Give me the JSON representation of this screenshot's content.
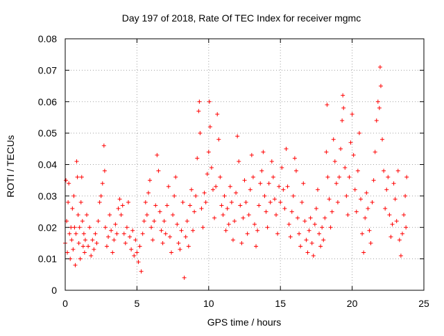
{
  "colors": {
    "series": "#ff0000",
    "axis": "#000000",
    "grid": "#a0a0a0",
    "background": "#ffffff"
  },
  "chart_data": {
    "type": "scatter",
    "title": "Day 197 of 2018, Rate Of TEC Index for receiver mgmc",
    "xlabel": "GPS time / hours",
    "ylabel": "ROTI / TECUs",
    "xlim": [
      0,
      25
    ],
    "ylim": [
      0,
      0.08
    ],
    "xticks": [
      0,
      5,
      10,
      15,
      20,
      25
    ],
    "xtick_labels": [
      "0",
      "5",
      "10",
      "15",
      "20",
      "25"
    ],
    "yticks": [
      0,
      0.01,
      0.02,
      0.03,
      0.04,
      0.05,
      0.06,
      0.07,
      0.08
    ],
    "ytick_labels": [
      "0",
      "0.01",
      "0.02",
      "0.03",
      "0.04",
      "0.05",
      "0.06",
      "0.07",
      "0.08"
    ],
    "grid": true,
    "marker": "+",
    "series": [
      {
        "name": "ROTI",
        "points": [
          [
            0.0,
            0.015
          ],
          [
            0.05,
            0.035
          ],
          [
            0.1,
            0.022
          ],
          [
            0.15,
            0.012
          ],
          [
            0.2,
            0.028
          ],
          [
            0.25,
            0.034
          ],
          [
            0.3,
            0.018
          ],
          [
            0.35,
            0.01
          ],
          [
            0.4,
            0.02
          ],
          [
            0.45,
            0.016
          ],
          [
            0.5,
            0.026
          ],
          [
            0.55,
            0.013
          ],
          [
            0.6,
            0.03
          ],
          [
            0.65,
            0.02
          ],
          [
            0.7,
            0.008
          ],
          [
            0.75,
            0.018
          ],
          [
            0.8,
            0.041
          ],
          [
            0.85,
            0.036
          ],
          [
            0.9,
            0.024
          ],
          [
            0.95,
            0.015
          ],
          [
            1.0,
            0.02
          ],
          [
            1.05,
            0.01
          ],
          [
            1.1,
            0.028
          ],
          [
            1.15,
            0.036
          ],
          [
            1.2,
            0.022
          ],
          [
            1.25,
            0.014
          ],
          [
            1.3,
            0.018
          ],
          [
            1.35,
            0.012
          ],
          [
            1.4,
            0.016
          ],
          [
            1.5,
            0.024
          ],
          [
            1.6,
            0.014
          ],
          [
            1.7,
            0.02
          ],
          [
            1.8,
            0.011
          ],
          [
            1.9,
            0.016
          ],
          [
            2.0,
            0.013
          ],
          [
            2.1,
            0.018
          ],
          [
            2.2,
            0.015
          ],
          [
            2.3,
            0.022
          ],
          [
            2.4,
            0.028
          ],
          [
            2.5,
            0.03
          ],
          [
            2.6,
            0.034
          ],
          [
            2.7,
            0.046
          ],
          [
            2.75,
            0.038
          ],
          [
            2.8,
            0.02
          ],
          [
            2.9,
            0.014
          ],
          [
            3.0,
            0.017
          ],
          [
            3.1,
            0.024
          ],
          [
            3.2,
            0.019
          ],
          [
            3.3,
            0.012
          ],
          [
            3.4,
            0.016
          ],
          [
            3.5,
            0.021
          ],
          [
            3.6,
            0.018
          ],
          [
            3.7,
            0.026
          ],
          [
            3.8,
            0.029
          ],
          [
            3.9,
            0.024
          ],
          [
            4.0,
            0.027
          ],
          [
            4.1,
            0.018
          ],
          [
            4.2,
            0.015
          ],
          [
            4.3,
            0.02
          ],
          [
            4.4,
            0.028
          ],
          [
            4.5,
            0.017
          ],
          [
            4.6,
            0.013
          ],
          [
            4.7,
            0.019
          ],
          [
            4.8,
            0.011
          ],
          [
            4.9,
            0.016
          ],
          [
            5.0,
            0.012
          ],
          [
            5.1,
            0.009
          ],
          [
            5.2,
            0.014
          ],
          [
            5.3,
            0.006
          ],
          [
            5.4,
            0.018
          ],
          [
            5.5,
            0.022
          ],
          [
            5.6,
            0.028
          ],
          [
            5.7,
            0.024
          ],
          [
            5.8,
            0.031
          ],
          [
            5.9,
            0.035
          ],
          [
            6.0,
            0.02
          ],
          [
            6.1,
            0.016
          ],
          [
            6.2,
            0.022
          ],
          [
            6.3,
            0.027
          ],
          [
            6.4,
            0.043
          ],
          [
            6.5,
            0.038
          ],
          [
            6.6,
            0.025
          ],
          [
            6.7,
            0.019
          ],
          [
            6.8,
            0.015
          ],
          [
            6.9,
            0.022
          ],
          [
            7.0,
            0.018
          ],
          [
            7.1,
            0.027
          ],
          [
            7.2,
            0.033
          ],
          [
            7.3,
            0.017
          ],
          [
            7.4,
            0.012
          ],
          [
            7.5,
            0.024
          ],
          [
            7.6,
            0.03
          ],
          [
            7.7,
            0.036
          ],
          [
            7.8,
            0.021
          ],
          [
            7.9,
            0.015
          ],
          [
            8.0,
            0.013
          ],
          [
            8.1,
            0.019
          ],
          [
            8.2,
            0.028
          ],
          [
            8.3,
            0.004
          ],
          [
            8.4,
            0.017
          ],
          [
            8.5,
            0.022
          ],
          [
            8.6,
            0.014
          ],
          [
            8.7,
            0.027
          ],
          [
            8.8,
            0.032
          ],
          [
            8.9,
            0.019
          ],
          [
            9.0,
            0.025
          ],
          [
            9.1,
            0.03
          ],
          [
            9.2,
            0.042
          ],
          [
            9.3,
            0.057
          ],
          [
            9.35,
            0.06
          ],
          [
            9.4,
            0.05
          ],
          [
            9.5,
            0.026
          ],
          [
            9.6,
            0.02
          ],
          [
            9.7,
            0.031
          ],
          [
            9.8,
            0.028
          ],
          [
            9.9,
            0.037
          ],
          [
            10.0,
            0.044
          ],
          [
            10.05,
            0.06
          ],
          [
            10.1,
            0.052
          ],
          [
            10.2,
            0.039
          ],
          [
            10.3,
            0.032
          ],
          [
            10.4,
            0.023
          ],
          [
            10.5,
            0.033
          ],
          [
            10.6,
            0.056
          ],
          [
            10.7,
            0.048
          ],
          [
            10.8,
            0.036
          ],
          [
            10.9,
            0.027
          ],
          [
            11.0,
            0.024
          ],
          [
            11.1,
            0.03
          ],
          [
            11.2,
            0.019
          ],
          [
            11.3,
            0.026
          ],
          [
            11.4,
            0.021
          ],
          [
            11.5,
            0.033
          ],
          [
            11.6,
            0.028
          ],
          [
            11.7,
            0.016
          ],
          [
            11.8,
            0.022
          ],
          [
            11.9,
            0.031
          ],
          [
            12.0,
            0.049
          ],
          [
            12.1,
            0.041
          ],
          [
            12.2,
            0.027
          ],
          [
            12.3,
            0.015
          ],
          [
            12.4,
            0.023
          ],
          [
            12.5,
            0.035
          ],
          [
            12.6,
            0.028
          ],
          [
            12.7,
            0.018
          ],
          [
            12.8,
            0.024
          ],
          [
            12.9,
            0.032
          ],
          [
            13.0,
            0.043
          ],
          [
            13.1,
            0.036
          ],
          [
            13.2,
            0.021
          ],
          [
            13.3,
            0.014
          ],
          [
            13.4,
            0.019
          ],
          [
            13.5,
            0.027
          ],
          [
            13.6,
            0.034
          ],
          [
            13.7,
            0.038
          ],
          [
            13.8,
            0.044
          ],
          [
            13.9,
            0.03
          ],
          [
            14.0,
            0.025
          ],
          [
            14.1,
            0.02
          ],
          [
            14.2,
            0.034
          ],
          [
            14.3,
            0.028
          ],
          [
            14.4,
            0.041
          ],
          [
            14.5,
            0.036
          ],
          [
            14.6,
            0.029
          ],
          [
            14.7,
            0.024
          ],
          [
            14.8,
            0.018
          ],
          [
            14.9,
            0.033
          ],
          [
            15.0,
            0.028
          ],
          [
            15.1,
            0.039
          ],
          [
            15.2,
            0.032
          ],
          [
            15.3,
            0.026
          ],
          [
            15.4,
            0.045
          ],
          [
            15.5,
            0.033
          ],
          [
            15.6,
            0.021
          ],
          [
            15.7,
            0.017
          ],
          [
            15.8,
            0.025
          ],
          [
            15.9,
            0.03
          ],
          [
            16.0,
            0.042
          ],
          [
            16.1,
            0.038
          ],
          [
            16.2,
            0.023
          ],
          [
            16.3,
            0.018
          ],
          [
            16.4,
            0.014
          ],
          [
            16.5,
            0.028
          ],
          [
            16.6,
            0.034
          ],
          [
            16.7,
            0.022
          ],
          [
            16.8,
            0.016
          ],
          [
            16.9,
            0.012
          ],
          [
            17.0,
            0.019
          ],
          [
            17.1,
            0.023
          ],
          [
            17.2,
            0.015
          ],
          [
            17.3,
            0.011
          ],
          [
            17.4,
            0.021
          ],
          [
            17.5,
            0.026
          ],
          [
            17.6,
            0.032
          ],
          [
            17.7,
            0.018
          ],
          [
            17.8,
            0.014
          ],
          [
            17.9,
            0.02
          ],
          [
            18.0,
            0.016
          ],
          [
            18.1,
            0.023
          ],
          [
            18.2,
            0.044
          ],
          [
            18.25,
            0.059
          ],
          [
            18.3,
            0.036
          ],
          [
            18.4,
            0.029
          ],
          [
            18.5,
            0.02
          ],
          [
            18.6,
            0.025
          ],
          [
            18.7,
            0.048
          ],
          [
            18.8,
            0.041
          ],
          [
            18.9,
            0.034
          ],
          [
            19.0,
            0.028
          ],
          [
            19.1,
            0.036
          ],
          [
            19.2,
            0.045
          ],
          [
            19.3,
            0.054
          ],
          [
            19.35,
            0.062
          ],
          [
            19.4,
            0.058
          ],
          [
            19.5,
            0.039
          ],
          [
            19.6,
            0.03
          ],
          [
            19.7,
            0.024
          ],
          [
            19.8,
            0.036
          ],
          [
            19.9,
            0.047
          ],
          [
            20.0,
            0.056
          ],
          [
            20.1,
            0.043
          ],
          [
            20.2,
            0.032
          ],
          [
            20.3,
            0.025
          ],
          [
            20.4,
            0.038
          ],
          [
            20.5,
            0.05
          ],
          [
            20.6,
            0.029
          ],
          [
            20.7,
            0.018
          ],
          [
            20.8,
            0.012
          ],
          [
            20.9,
            0.023
          ],
          [
            21.0,
            0.031
          ],
          [
            21.1,
            0.026
          ],
          [
            21.2,
            0.019
          ],
          [
            21.3,
            0.015
          ],
          [
            21.4,
            0.028
          ],
          [
            21.5,
            0.035
          ],
          [
            21.6,
            0.044
          ],
          [
            21.7,
            0.054
          ],
          [
            21.8,
            0.06
          ],
          [
            21.9,
            0.058
          ],
          [
            21.95,
            0.071
          ],
          [
            22.0,
            0.065
          ],
          [
            22.1,
            0.048
          ],
          [
            22.2,
            0.038
          ],
          [
            22.3,
            0.026
          ],
          [
            22.4,
            0.032
          ],
          [
            22.5,
            0.036
          ],
          [
            22.6,
            0.024
          ],
          [
            22.7,
            0.017
          ],
          [
            22.8,
            0.021
          ],
          [
            22.9,
            0.034
          ],
          [
            23.0,
            0.029
          ],
          [
            23.1,
            0.022
          ],
          [
            23.2,
            0.038
          ],
          [
            23.3,
            0.016
          ],
          [
            23.4,
            0.011
          ],
          [
            23.5,
            0.018
          ],
          [
            23.6,
            0.024
          ],
          [
            23.7,
            0.03
          ],
          [
            23.75,
            0.02
          ],
          [
            23.8,
            0.036
          ]
        ]
      }
    ]
  }
}
